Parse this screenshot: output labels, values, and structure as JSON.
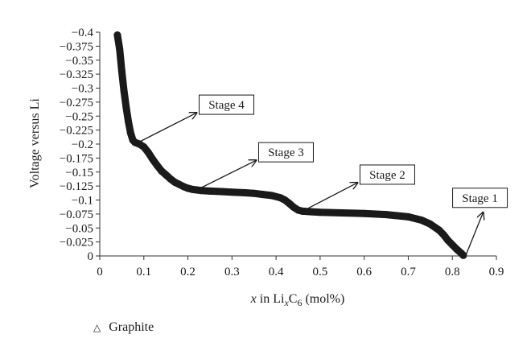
{
  "chart_data": {
    "type": "line",
    "xlabel": {
      "var": "x",
      "pre": " in Li",
      "sub1": "x",
      "mid": "C",
      "sub2": "6",
      "post": " (mol%)"
    },
    "ylabel": "Voltage versus Li",
    "xlim": [
      0,
      0.9
    ],
    "ylim": [
      0,
      -0.4
    ],
    "y_inverted": true,
    "x_ticks": [
      "0",
      "0.1",
      "0.2",
      "0.3",
      "0.4",
      "0.5",
      "0.6",
      "0.7",
      "0.8",
      "0.9"
    ],
    "y_ticks": [
      "0",
      "−0.025",
      "−0.05",
      "−0.075",
      "−0.1",
      "−0.125",
      "−0.15",
      "−0.175",
      "−0.2",
      "−0.225",
      "−0.25",
      "−0.275",
      "−0.3",
      "−0.325",
      "−0.35",
      "−0.375",
      "−0.4"
    ],
    "grid": false,
    "legend_position": "bottom-left",
    "series": [
      {
        "name": "Graphite",
        "color": "#1a1a1a",
        "marker": "triangle",
        "points": [
          [
            0.04,
            -0.395
          ],
          [
            0.045,
            -0.37
          ],
          [
            0.05,
            -0.33
          ],
          [
            0.055,
            -0.295
          ],
          [
            0.06,
            -0.265
          ],
          [
            0.065,
            -0.24
          ],
          [
            0.07,
            -0.22
          ],
          [
            0.075,
            -0.207
          ],
          [
            0.08,
            -0.203
          ],
          [
            0.09,
            -0.2
          ],
          [
            0.1,
            -0.195
          ],
          [
            0.11,
            -0.185
          ],
          [
            0.12,
            -0.173
          ],
          [
            0.13,
            -0.162
          ],
          [
            0.14,
            -0.152
          ],
          [
            0.15,
            -0.145
          ],
          [
            0.16,
            -0.138
          ],
          [
            0.17,
            -0.132
          ],
          [
            0.18,
            -0.128
          ],
          [
            0.19,
            -0.124
          ],
          [
            0.2,
            -0.121
          ],
          [
            0.21,
            -0.119
          ],
          [
            0.22,
            -0.118
          ],
          [
            0.23,
            -0.117
          ],
          [
            0.25,
            -0.116
          ],
          [
            0.28,
            -0.115
          ],
          [
            0.3,
            -0.114
          ],
          [
            0.33,
            -0.113
          ],
          [
            0.35,
            -0.112
          ],
          [
            0.37,
            -0.11
          ],
          [
            0.39,
            -0.108
          ],
          [
            0.41,
            -0.104
          ],
          [
            0.42,
            -0.1
          ],
          [
            0.43,
            -0.094
          ],
          [
            0.44,
            -0.087
          ],
          [
            0.45,
            -0.082
          ],
          [
            0.46,
            -0.08
          ],
          [
            0.48,
            -0.079
          ],
          [
            0.5,
            -0.078
          ],
          [
            0.55,
            -0.077
          ],
          [
            0.6,
            -0.076
          ],
          [
            0.65,
            -0.074
          ],
          [
            0.7,
            -0.07
          ],
          [
            0.73,
            -0.064
          ],
          [
            0.75,
            -0.057
          ],
          [
            0.77,
            -0.046
          ],
          [
            0.78,
            -0.038
          ],
          [
            0.79,
            -0.028
          ],
          [
            0.8,
            -0.02
          ],
          [
            0.81,
            -0.012
          ],
          [
            0.82,
            -0.005
          ],
          [
            0.825,
            -0.001
          ]
        ]
      }
    ],
    "annotations": [
      {
        "label": "Stage 4",
        "point": [
          0.08,
          -0.2
        ],
        "target": [
          0.22,
          -0.256
        ]
      },
      {
        "label": "Stage 3",
        "point": [
          0.225,
          -0.12
        ],
        "target": [
          0.355,
          -0.171
        ]
      },
      {
        "label": "Stage 2",
        "point": [
          0.46,
          -0.08
        ],
        "target": [
          0.585,
          -0.131
        ]
      },
      {
        "label": "Stage 1",
        "point": [
          0.83,
          0.0
        ],
        "target": [
          0.87,
          -0.078
        ]
      }
    ]
  }
}
